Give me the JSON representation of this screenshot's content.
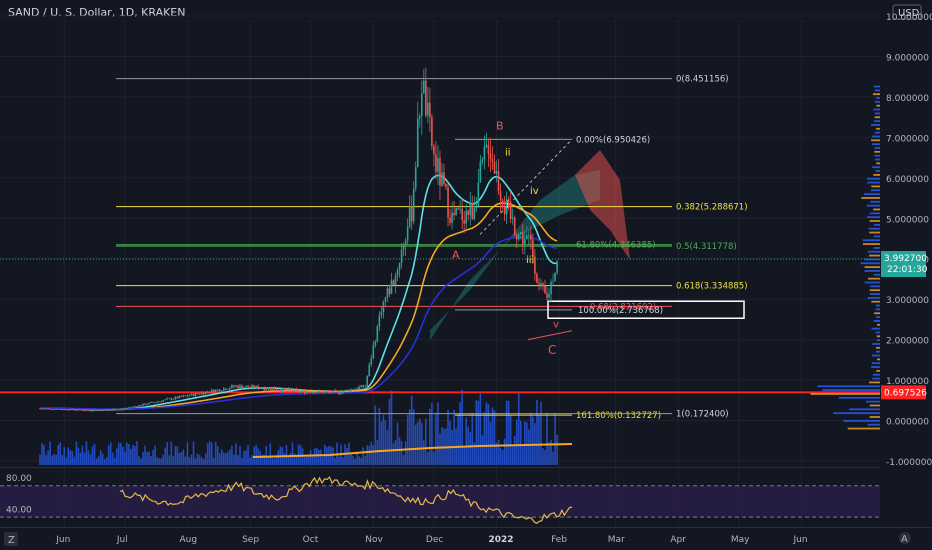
{
  "header": {
    "title": "SAND / U. S. Dollar, 1D, KRAKEN"
  },
  "currency_badge": "USD",
  "colors": {
    "bg": "#131722",
    "up": "#26a69a",
    "down": "#ef5350",
    "ema_cyan": "#5ce1e6",
    "ema_orange": "#f5a623",
    "ema_blue": "#2a2fd1",
    "fib_yellow": "#f0e040",
    "fib_green": "#4caf50",
    "fib_red": "#ef5350",
    "horiz_red": "#ff2020",
    "rsi_line": "#e8b84a",
    "rsi_bg": "#2a1f4a",
    "volume": "#2962ff",
    "price_tag": "#26a69a"
  },
  "chart_data": [
    {
      "type": "line",
      "title": "SAND / U. S. Dollar, 1D, KRAKEN",
      "ylim": [
        -1.0,
        10.0
      ],
      "y_ticks": [
        "10.000000",
        "9.000000",
        "8.000000",
        "7.000000",
        "6.000000",
        "5.000000",
        "4.000000",
        "3.000000",
        "2.000000",
        "1.000000",
        "0.000000",
        "-1.000000"
      ],
      "x_ticks": [
        "Jun",
        "Jul",
        "Aug",
        "Sep",
        "Oct",
        "Nov",
        "Dec",
        "2022",
        "Feb",
        "Mar",
        "Apr",
        "May",
        "Jun"
      ],
      "series": [
        {
          "values_by_month": {
            "x": [
              "2021-05-20",
              "2021-06-15",
              "2021-07-01",
              "2021-07-20",
              "2021-08-10",
              "2021-08-25",
              "2021-09-10",
              "2021-09-25",
              "2021-10-15",
              "2021-10-28",
              "2021-11-05",
              "2021-11-12",
              "2021-11-20",
              "2021-11-25",
              "2021-12-01",
              "2021-12-10",
              "2021-12-20",
              "2021-12-28",
              "2022-01-05",
              "2022-01-12",
              "2022-01-18",
              "2022-01-22",
              "2022-01-26",
              "2022-01-31"
            ],
            "y": [
              0.3,
              0.25,
              0.3,
              0.5,
              0.7,
              0.85,
              0.8,
              0.72,
              0.7,
              0.85,
              2.8,
              3.6,
              5.2,
              8.4,
              6.5,
              5.0,
              5.2,
              6.9,
              5.3,
              4.6,
              4.4,
              3.3,
              3.0,
              3.99
            ]
          }
        }
      ],
      "fibonacci_levels": [
        {
          "label": "0(8.451156)",
          "value": 8.451156
        },
        {
          "label": "0.00%(6.950426)",
          "value": 6.950426
        },
        {
          "label": "0.382(5.288671)",
          "value": 5.288671
        },
        {
          "label": "61.80%(4.346385)",
          "value": 4.346385
        },
        {
          "label": "0.5(4.311778)",
          "value": 4.311778
        },
        {
          "label": "0.618(3.334885)",
          "value": 3.334885
        },
        {
          "label": "0.68(2.821602)",
          "value": 2.821602
        },
        {
          "label": "100.00%(2.736768)",
          "value": 2.736768
        },
        {
          "label": "161.80%(0.132727)",
          "value": 0.132727
        },
        {
          "label": "1(0.172400)",
          "value": 0.1724
        }
      ],
      "horizontal_support": {
        "value": 0.697526,
        "label": "0.697526"
      },
      "last_price": {
        "value": "3.992700",
        "countdown": "22:01:30"
      },
      "wave_labels": [
        "A",
        "B",
        "C",
        "i",
        "ii",
        "iii",
        "iv",
        "v"
      ]
    },
    {
      "type": "line",
      "y_ticks": [
        "80.00",
        "40.00"
      ],
      "rsi_values": [
        62,
        55,
        50,
        48,
        58,
        64,
        70,
        60,
        55,
        66,
        78,
        76,
        70,
        72,
        60,
        50,
        52,
        62,
        45,
        38,
        30,
        26,
        32,
        40
      ]
    }
  ],
  "bottom_bar": {
    "left_icon": "Z",
    "right_icon": "A"
  }
}
